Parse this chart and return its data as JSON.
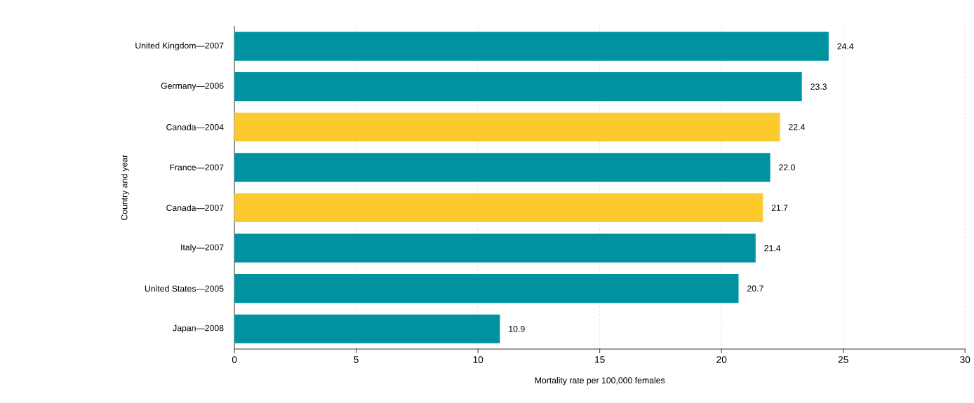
{
  "chart_data": {
    "type": "bar",
    "orientation": "horizontal",
    "xlabel": "Mortality rate per 100,000 females",
    "ylabel": "Country and year",
    "categories": [
      "United Kingdom—2007",
      "Germany—2006",
      "Canada—2004",
      "France—2007",
      "Canada—2007",
      "Italy—2007",
      "United States—2005",
      "Japan—2008"
    ],
    "values": [
      24.4,
      23.3,
      22.4,
      22.0,
      21.7,
      21.4,
      20.7,
      10.9
    ],
    "value_labels": [
      "24.4",
      "23.3",
      "22.4",
      "22.0",
      "21.7",
      "21.4",
      "20.7",
      "10.9"
    ],
    "colors": [
      "#00929f",
      "#00929f",
      "#fdca2e",
      "#00929f",
      "#fdca2e",
      "#00929f",
      "#00929f",
      "#00929f"
    ],
    "xlim": [
      0,
      30
    ],
    "xticks": [
      0,
      5,
      10,
      15,
      20,
      25,
      30
    ],
    "grid": "x"
  }
}
